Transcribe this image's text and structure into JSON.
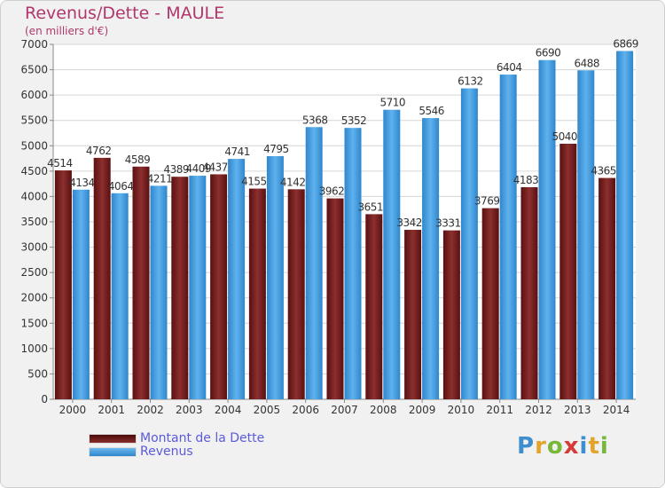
{
  "header": {
    "title": "Revenus/Dette - MAULE",
    "subtitle": "(en milliers d'€)"
  },
  "legend": {
    "items": [
      {
        "label": "Montant de la Dette",
        "color": "#7a1f1f"
      },
      {
        "label": "Revenus",
        "color": "#4aa3e6"
      }
    ]
  },
  "logo": {
    "text": "Proxiti"
  },
  "chart_data": {
    "type": "bar",
    "title": "Revenus/Dette - MAULE",
    "subtitle": "(en milliers d'€)",
    "xlabel": "",
    "ylabel": "",
    "ylim": [
      0,
      7000
    ],
    "yticks": [
      0,
      500,
      1000,
      1500,
      2000,
      2500,
      3000,
      3500,
      4000,
      4500,
      5000,
      5500,
      6000,
      6500,
      7000
    ],
    "grid": true,
    "legend_position": "bottom-left",
    "categories": [
      "2000",
      "2001",
      "2002",
      "2003",
      "2004",
      "2005",
      "2006",
      "2007",
      "2008",
      "2009",
      "2010",
      "2011",
      "2012",
      "2013",
      "2014"
    ],
    "series": [
      {
        "name": "Montant de la Dette",
        "color": "#7a1f1f",
        "values": [
          4514,
          4762,
          4589,
          4389,
          4437,
          4155,
          4142,
          3962,
          3651,
          3342,
          3331,
          3769,
          4183,
          5040,
          4365
        ],
        "labels": [
          "4514",
          "4762",
          "4589",
          "4389",
          "4437",
          "4155",
          "4142",
          "3962",
          "3651",
          "3342",
          "3331",
          "3769",
          "4183",
          "5040",
          "4365"
        ]
      },
      {
        "name": "Revenus",
        "color": "#4aa3e6",
        "values": [
          4134,
          4064,
          4211,
          4409,
          4741,
          4795,
          5368,
          5352,
          5710,
          5546,
          6132,
          6404,
          6690,
          6488,
          6869
        ],
        "labels": [
          "4134",
          "4064",
          "4211",
          "4409",
          "4741",
          "4795",
          "5368",
          "5352",
          "5710",
          "5546",
          "6132",
          "6404",
          "6690",
          "6488",
          "6869"
        ]
      }
    ]
  }
}
